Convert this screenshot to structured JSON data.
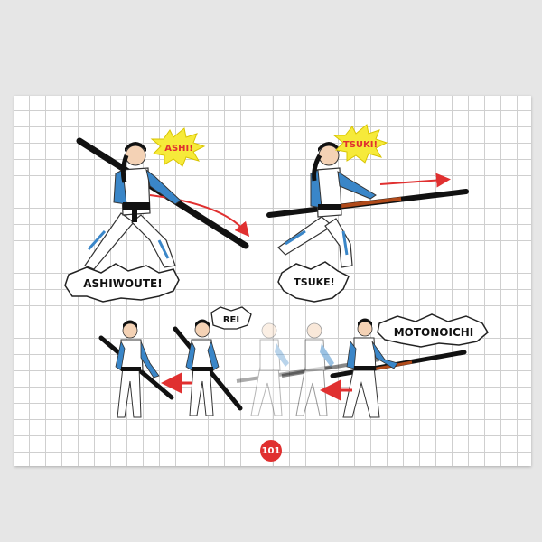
{
  "callouts": {
    "ashi": "ASHI!",
    "tsuki": "TSUKI!",
    "ashiwoute": "ASHIWOUTE!",
    "tsuke": "TSUKE!",
    "rei": "REI",
    "motonoichi": "MOTONOICHI"
  },
  "page_number": "101",
  "colors": {
    "page_bg": "#ffffff",
    "grid": "#cfcfcf",
    "uniform_blue": "#3a86c8",
    "belt": "#111111",
    "arrow_red": "#e03030",
    "burst_yellow": "#f6ea3a",
    "page_number_bg": "#e03030"
  },
  "icons": [
    "movement-arrow-icon",
    "retreat-arrow-icon"
  ]
}
